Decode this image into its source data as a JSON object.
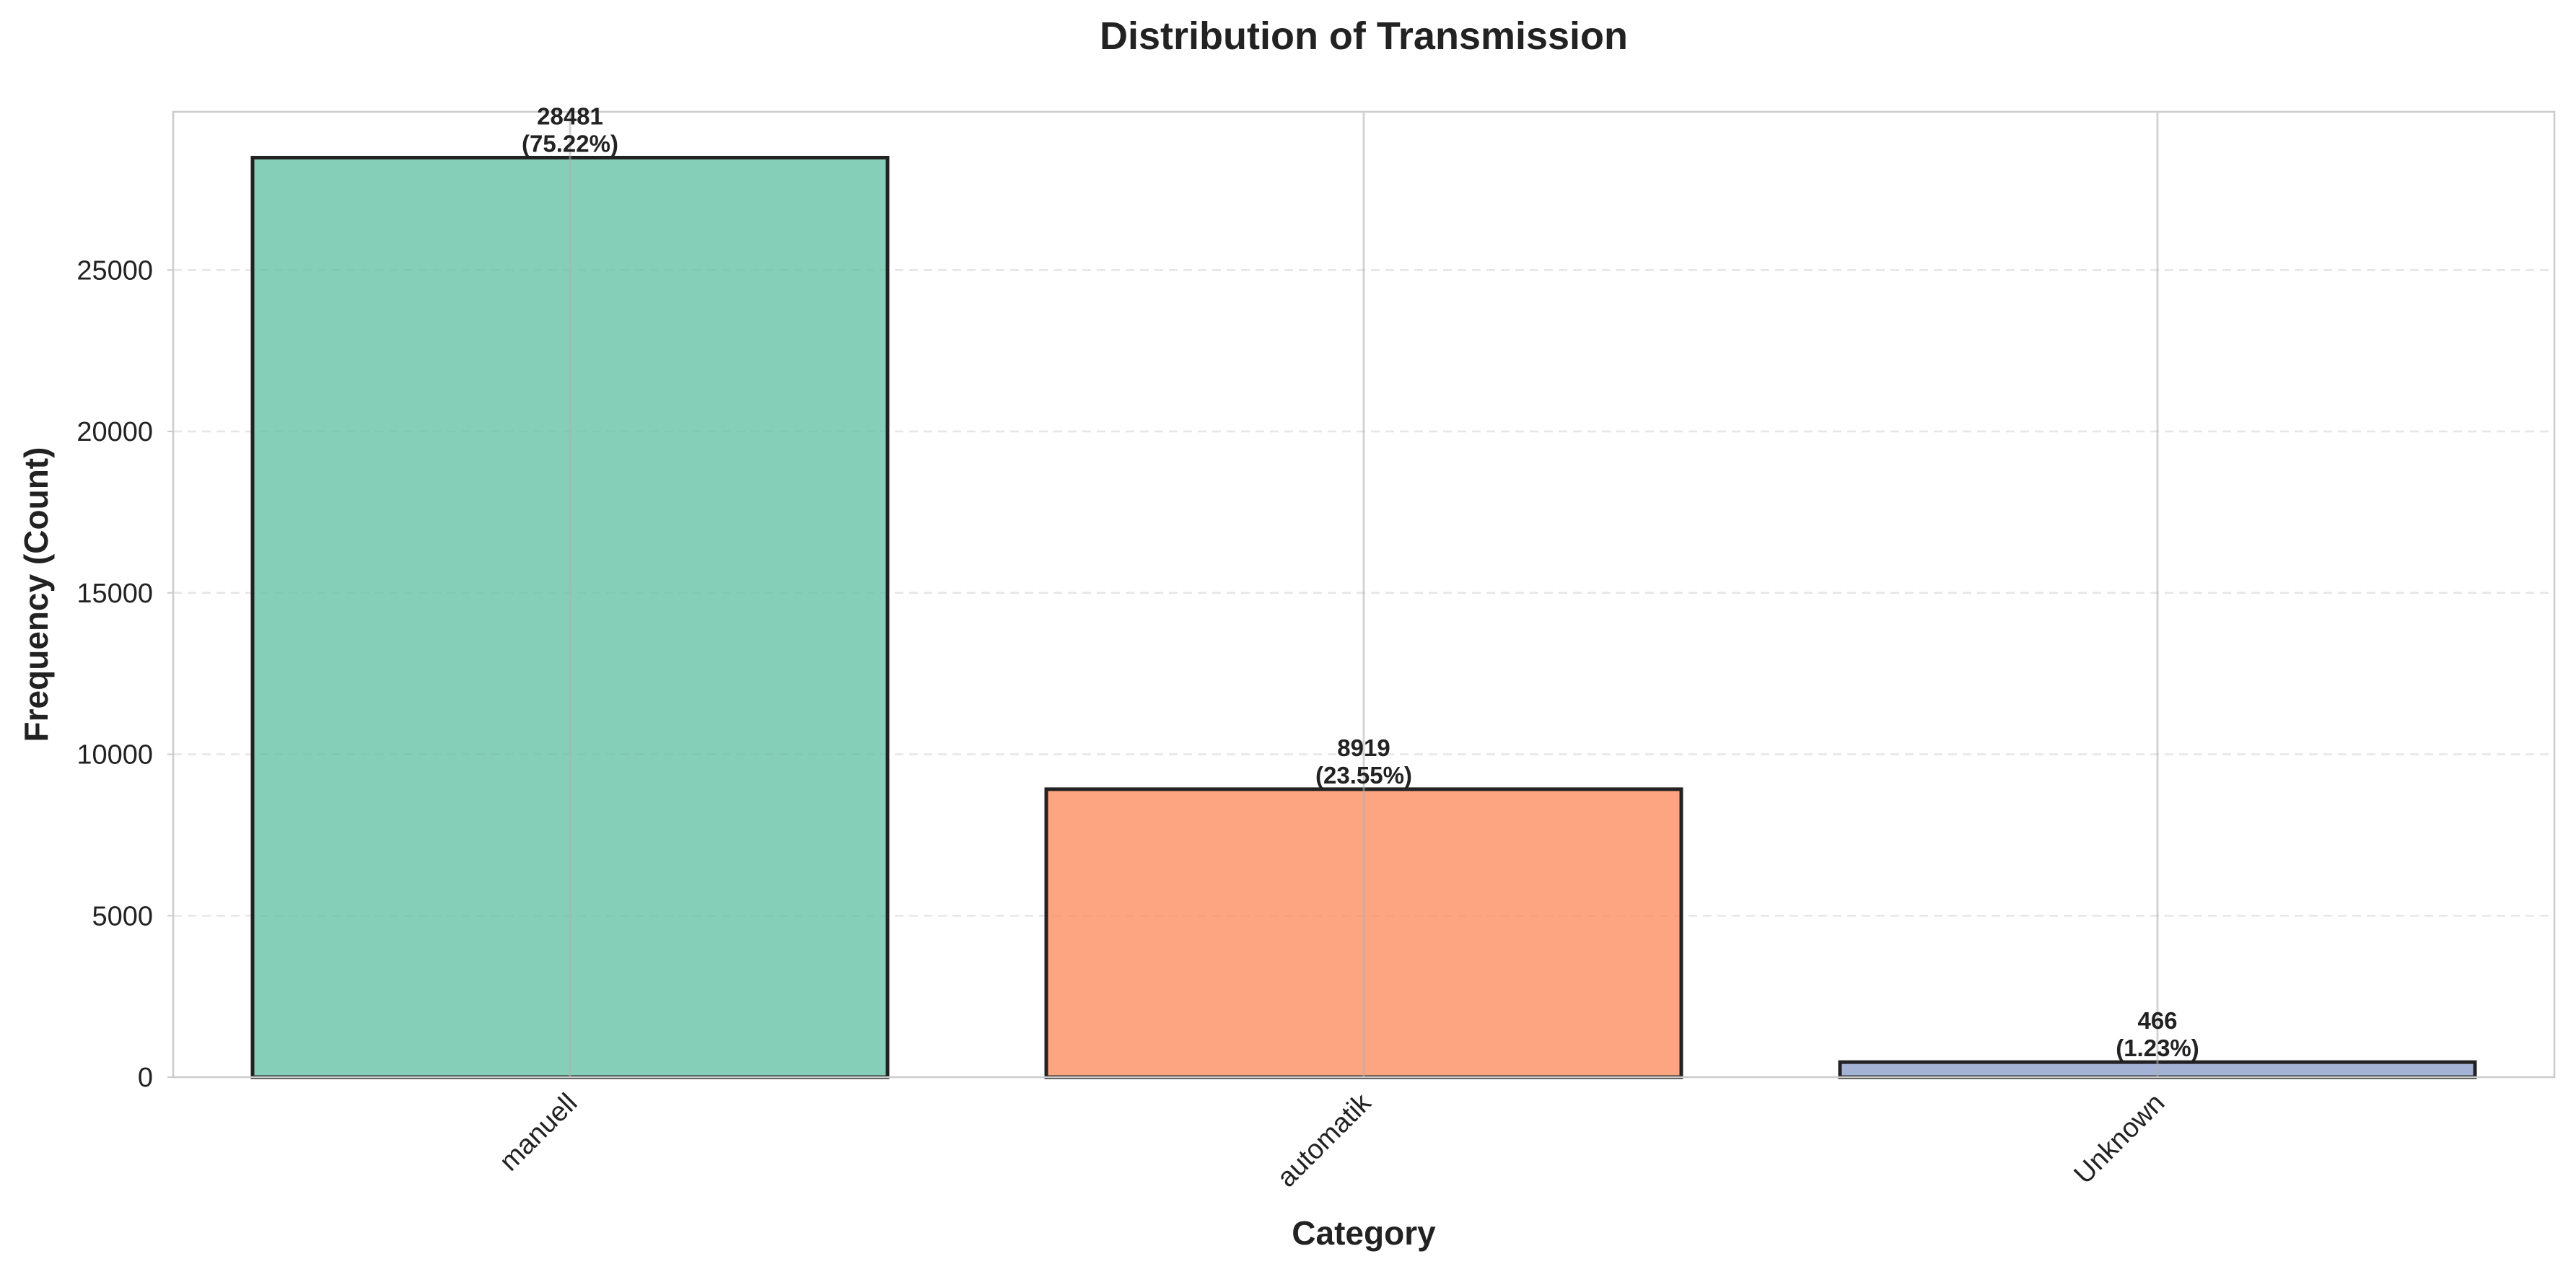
{
  "chart_data": {
    "type": "bar",
    "title": "Distribution of Transmission",
    "xlabel": "Category",
    "ylabel": "Frequency (Count)",
    "categories": [
      "manuell",
      "automatik",
      "Unknown"
    ],
    "values": [
      28481,
      8919,
      466
    ],
    "value_labels": [
      "28481",
      "8919",
      "466"
    ],
    "percent_labels": [
      "(75.22%)",
      "(23.55%)",
      "(1.23%)"
    ],
    "colors": [
      "#66c2a5",
      "#fc8d62",
      "#8da0cb"
    ],
    "ylim": [
      0,
      29900
    ],
    "yticks": [
      0,
      5000,
      10000,
      15000,
      20000,
      25000
    ],
    "ytick_labels": [
      "0",
      "5000",
      "10000",
      "15000",
      "20000",
      "25000"
    ],
    "grid": true,
    "legend": "none"
  }
}
